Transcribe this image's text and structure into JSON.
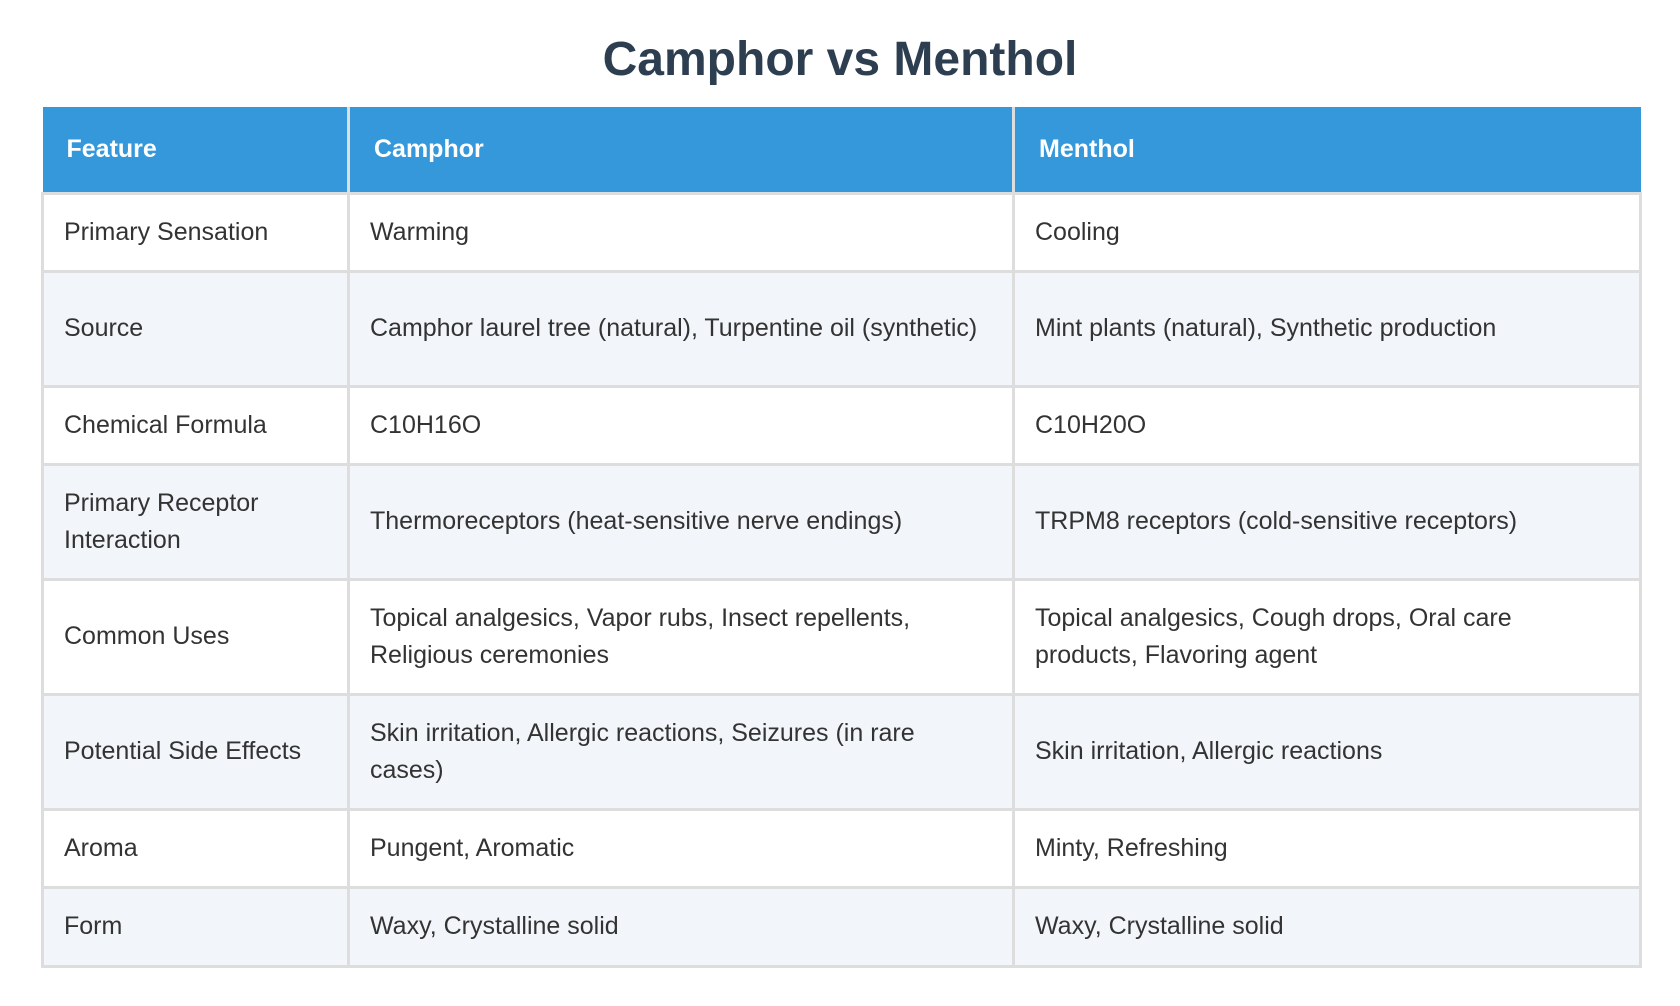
{
  "title": "Camphor vs Menthol",
  "table": {
    "headers": [
      "Feature",
      "Camphor",
      "Menthol"
    ],
    "rows": [
      [
        "Primary Sensation",
        "Warming",
        "Cooling"
      ],
      [
        "Source",
        "Camphor laurel tree (natural), Turpentine oil (synthetic)",
        "Mint plants (natural), Synthetic production"
      ],
      [
        "Chemical Formula",
        "C10H16O",
        "C10H20O"
      ],
      [
        "Primary Receptor Interaction",
        "Thermoreceptors (heat-sensitive nerve endings)",
        "TRPM8 receptors (cold-sensitive receptors)"
      ],
      [
        "Common Uses",
        "Topical analgesics, Vapor rubs, Insect repellents, Religious ceremonies",
        "Topical analgesics, Cough drops, Oral care products, Flavoring agent"
      ],
      [
        "Potential Side Effects",
        "Skin irritation, Allergic reactions, Seizures (in rare cases)",
        "Skin irritation, Allergic reactions"
      ],
      [
        "Aroma",
        "Pungent, Aromatic",
        "Minty, Refreshing"
      ],
      [
        "Form",
        "Waxy, Crystalline solid",
        "Waxy, Crystalline solid"
      ]
    ]
  },
  "colors": {
    "header_bg": "#3498db",
    "title": "#2c3e50",
    "stripe": "#f2f5f9"
  }
}
